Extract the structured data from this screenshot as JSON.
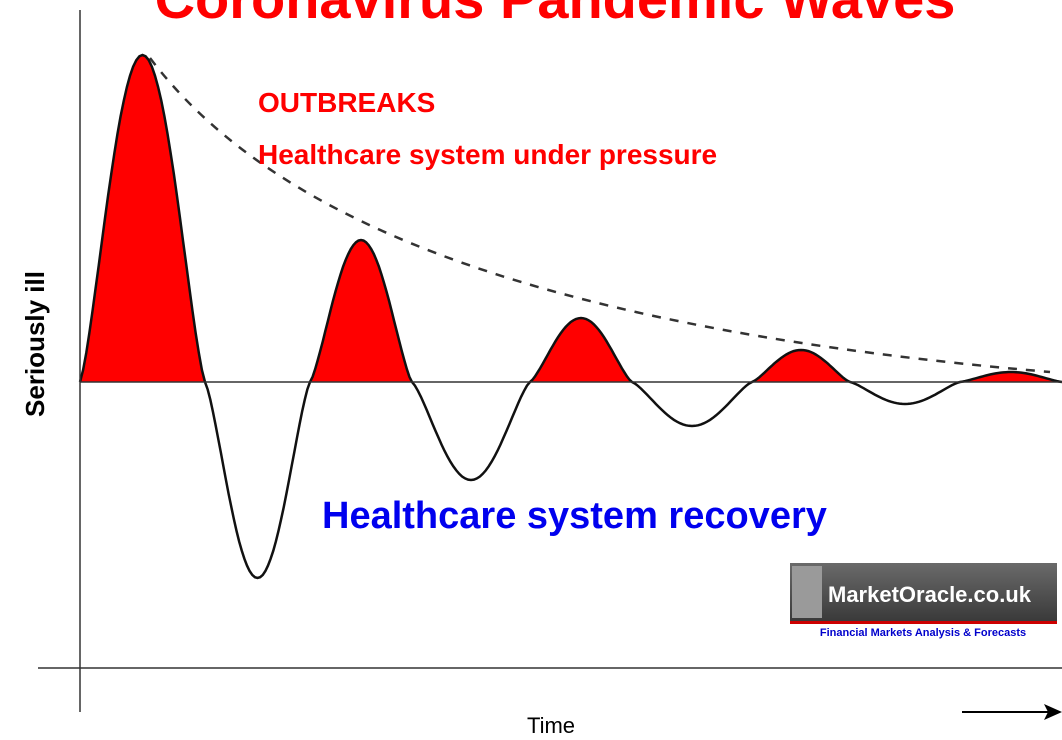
{
  "title": "Coronavirus Pandemic Waves",
  "annotations": {
    "outbreaks": "OUTBREAKS",
    "pressure": "Healthcare system under pressure",
    "recovery": "Healthcare system recovery"
  },
  "axes": {
    "y_label": "Seriously ill",
    "x_label": "Time"
  },
  "logo": {
    "name": "MarketOracle.co.uk",
    "tagline": "Financial Markets Analysis & Forecasts"
  }
}
